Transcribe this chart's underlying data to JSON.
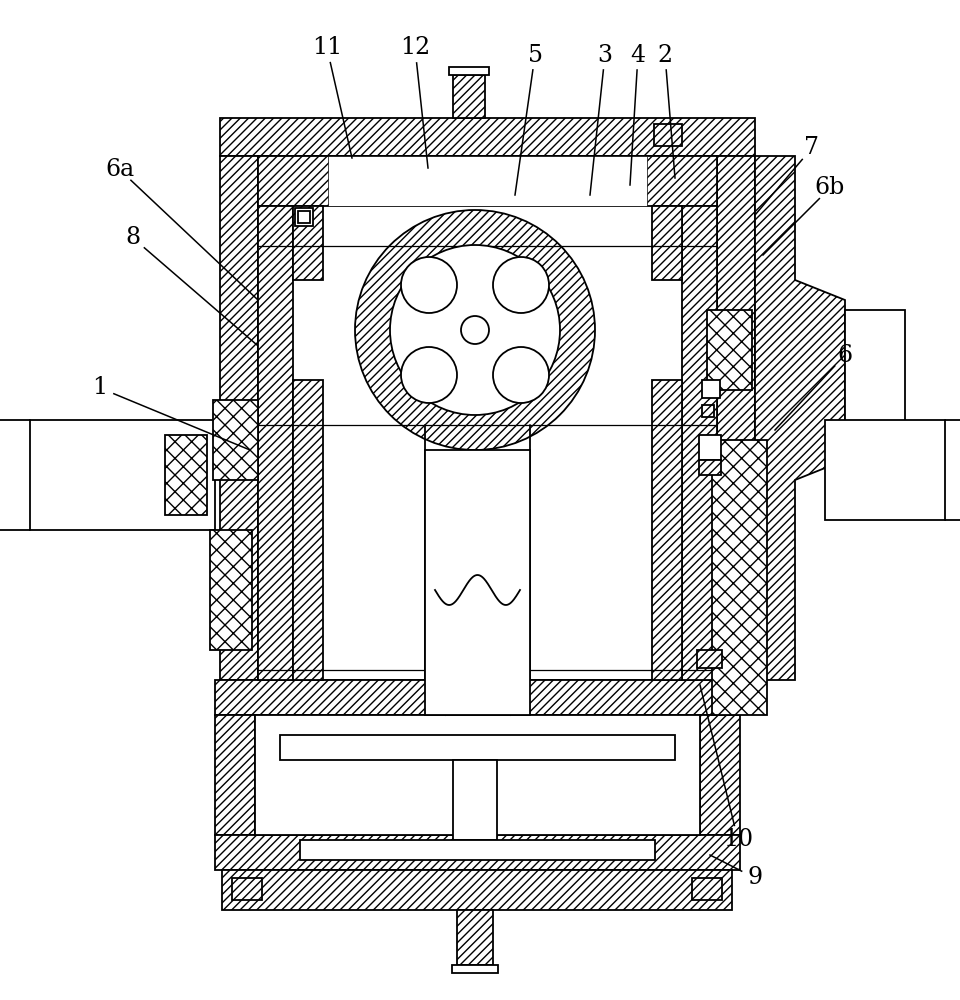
{
  "background_color": "#ffffff",
  "line_color": "#000000",
  "fig_width": 9.6,
  "fig_height": 10.0,
  "label_fontsize": 17,
  "line_width": 1.3,
  "labels": [
    [
      "2",
      665,
      55,
      675,
      178
    ],
    [
      "3",
      605,
      55,
      590,
      195
    ],
    [
      "4",
      638,
      55,
      630,
      185
    ],
    [
      "5",
      535,
      55,
      515,
      195
    ],
    [
      "6",
      845,
      355,
      775,
      430
    ],
    [
      "6a",
      120,
      170,
      258,
      300
    ],
    [
      "6b",
      830,
      188,
      763,
      255
    ],
    [
      "7",
      812,
      148,
      755,
      215
    ],
    [
      "8",
      133,
      238,
      257,
      345
    ],
    [
      "9",
      755,
      878,
      710,
      855
    ],
    [
      "10",
      738,
      840,
      700,
      685
    ],
    [
      "11",
      327,
      48,
      352,
      158
    ],
    [
      "12",
      415,
      48,
      428,
      168
    ],
    [
      "1",
      100,
      388,
      250,
      450
    ]
  ]
}
